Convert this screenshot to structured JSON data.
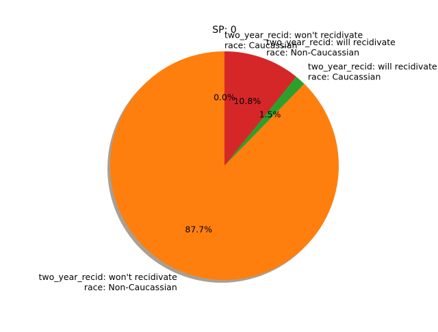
{
  "chart_data": {
    "type": "pie",
    "title": "SP: 0",
    "slices": [
      {
        "label_lines": [
          "two_year_recid: won't recidivate",
          "race: Caucassian"
        ],
        "value": 0.0,
        "pct_label": "0.0%",
        "color": "#1f77b4"
      },
      {
        "label_lines": [
          "two_year_recid: won't recidivate",
          "race: Non-Caucassian"
        ],
        "value": 87.7,
        "pct_label": "87.7%",
        "color": "#ff7f0e"
      },
      {
        "label_lines": [
          "two_year_recid: will recidivate",
          "race: Caucassian"
        ],
        "value": 1.5,
        "pct_label": "1.5%",
        "color": "#2ca02c"
      },
      {
        "label_lines": [
          "two_year_recid: will recidivate",
          "race: Non-Caucassian"
        ],
        "value": 10.8,
        "pct_label": "10.8%",
        "color": "#d62728"
      }
    ],
    "start_angle": "top",
    "direction": "counterclockwise",
    "shadow": true,
    "legend": "none"
  }
}
